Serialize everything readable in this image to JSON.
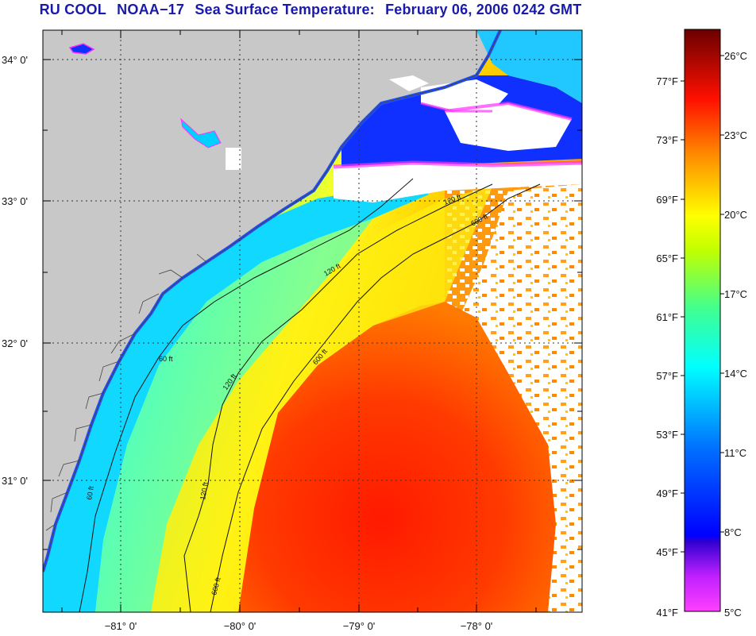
{
  "title": {
    "org": "RU COOL",
    "satellite": "NOAA−17",
    "product": "Sea Surface Temperature:",
    "datetime": "February 06, 2006 0242 GMT"
  },
  "map": {
    "lat_labels": [
      "34° 0'",
      "33° 0'",
      "32° 0'",
      "31° 0'"
    ],
    "lon_labels": [
      "−81° 0'",
      "−80° 0'",
      "−79° 0'",
      "−78° 0'"
    ],
    "contour_labels": [
      "60 ft",
      "120 ft",
      "600 ft"
    ],
    "colors": {
      "land": "#c8c8c8",
      "cloud": "#ffffff",
      "coast_cold": "#00d8ff",
      "shelf_mid": "#7fffb0",
      "shelf_yellow": "#ffff00",
      "gulf_stream": "#ff2a00",
      "offshore_orange": "#ffa000",
      "inlet_magenta": "#ff00ff"
    }
  },
  "colorbar": {
    "fahrenheit": [
      "77°F",
      "73°F",
      "69°F",
      "65°F",
      "61°F",
      "57°F",
      "53°F",
      "49°F",
      "45°F",
      "41°F"
    ],
    "celsius": [
      "26°C",
      "23°C",
      "20°C",
      "17°C",
      "14°C",
      "11°C",
      "8°C",
      "5°C"
    ],
    "stops": [
      "#800000",
      "#ff0000",
      "#ff8000",
      "#ffff00",
      "#00ff80",
      "#00ffff",
      "#0080ff",
      "#0000ff",
      "#8000c0",
      "#ff40ff"
    ]
  }
}
